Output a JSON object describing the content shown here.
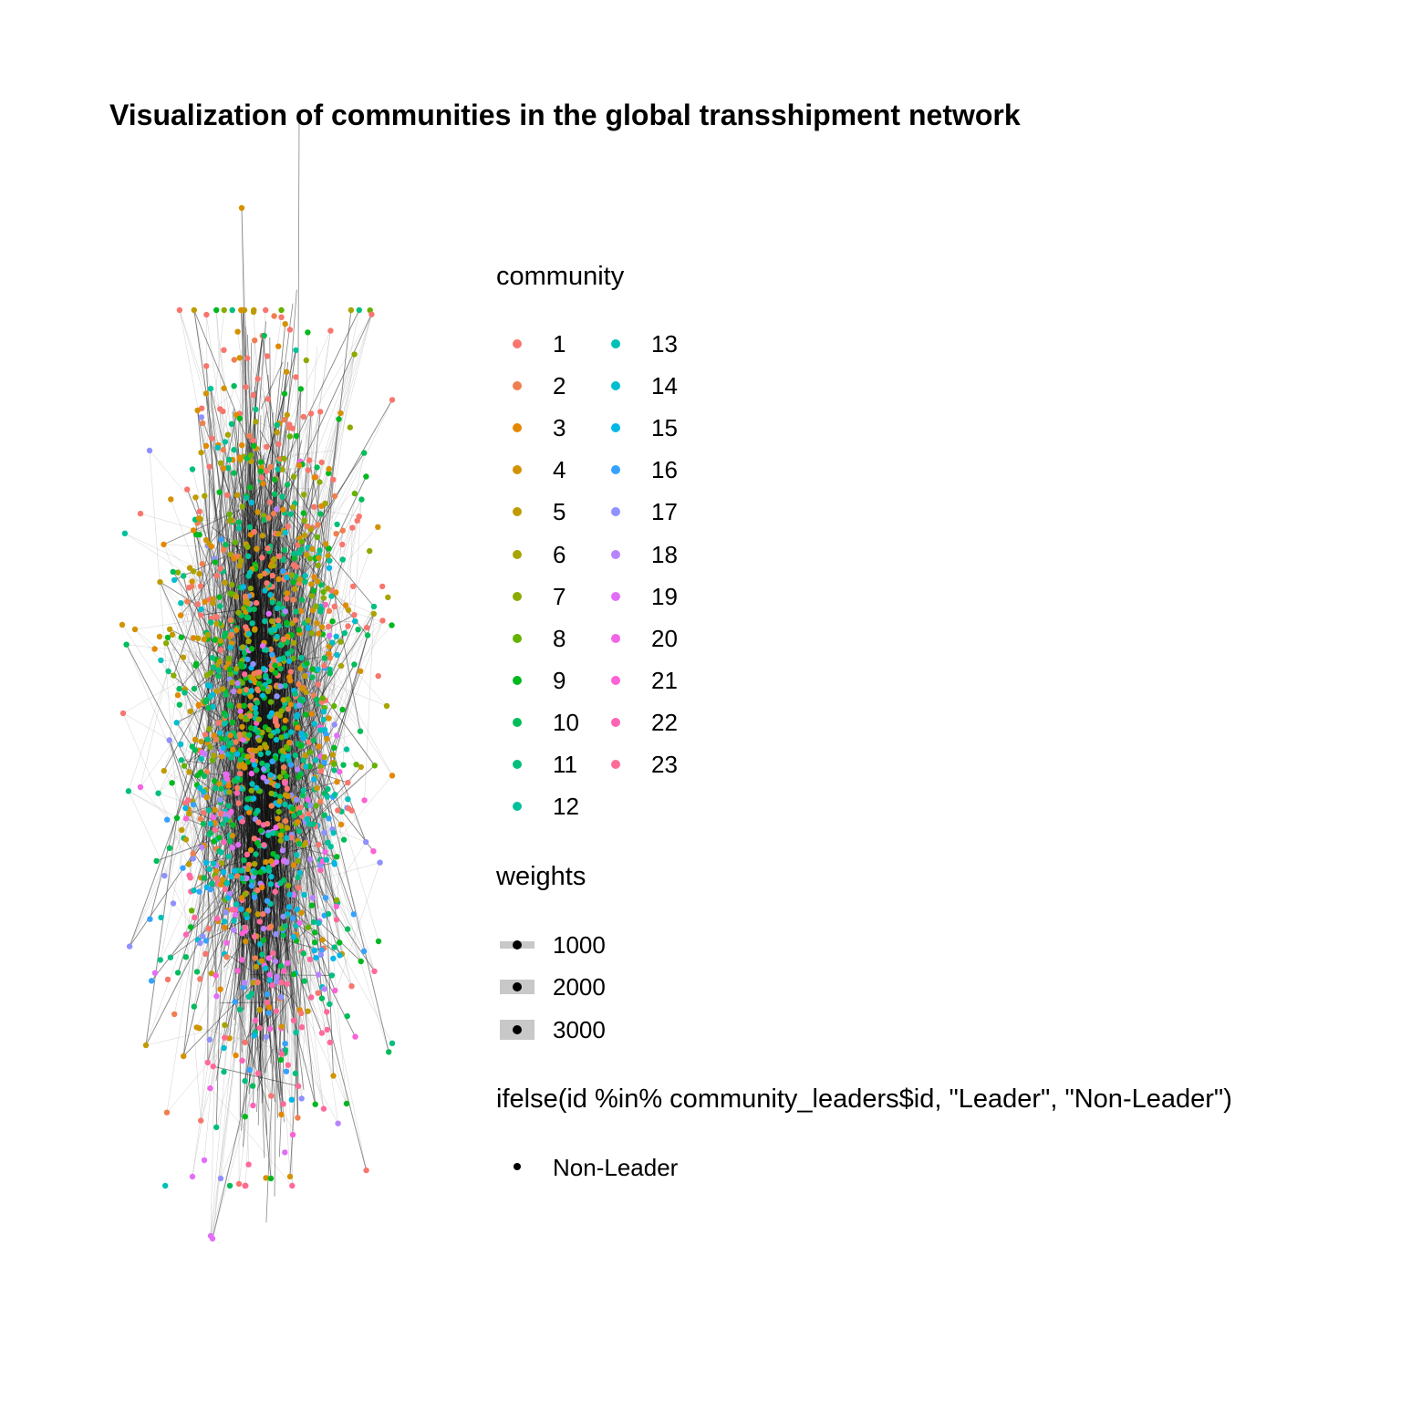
{
  "title": "Visualization of communities in the global transshipment network",
  "legend": {
    "community": {
      "title": "community",
      "entries": [
        {
          "label": "1",
          "color": "#F8766D"
        },
        {
          "label": "2",
          "color": "#F07F4F"
        },
        {
          "label": "3",
          "color": "#E38900"
        },
        {
          "label": "4",
          "color": "#D39200"
        },
        {
          "label": "5",
          "color": "#C09B00"
        },
        {
          "label": "6",
          "color": "#A8A400"
        },
        {
          "label": "7",
          "color": "#8CAB00"
        },
        {
          "label": "8",
          "color": "#64B200"
        },
        {
          "label": "9",
          "color": "#00B81F"
        },
        {
          "label": "10",
          "color": "#00BC59"
        },
        {
          "label": "11",
          "color": "#00BF7D"
        },
        {
          "label": "12",
          "color": "#00C19C"
        },
        {
          "label": "13",
          "color": "#00C0B7"
        },
        {
          "label": "14",
          "color": "#00BDD0"
        },
        {
          "label": "15",
          "color": "#00B7E7"
        },
        {
          "label": "16",
          "color": "#35A2FF"
        },
        {
          "label": "17",
          "color": "#8F91FF"
        },
        {
          "label": "18",
          "color": "#B983FF"
        },
        {
          "label": "19",
          "color": "#E26EF7"
        },
        {
          "label": "20",
          "color": "#F265E7"
        },
        {
          "label": "21",
          "color": "#FC61D5"
        },
        {
          "label": "22",
          "color": "#FF63B6"
        },
        {
          "label": "23",
          "color": "#FF6A98"
        }
      ]
    },
    "weights": {
      "title": "weights",
      "entries": [
        {
          "label": "1000",
          "value": 1000
        },
        {
          "label": "2000",
          "value": 2000
        },
        {
          "label": "3000",
          "value": 3000
        }
      ]
    },
    "leader": {
      "title": "ifelse(id %in% community_leaders$id, \"Leader\", \"Non-Leader\")",
      "entries": [
        {
          "label": "Non-Leader",
          "color": "#000000"
        }
      ]
    }
  }
}
